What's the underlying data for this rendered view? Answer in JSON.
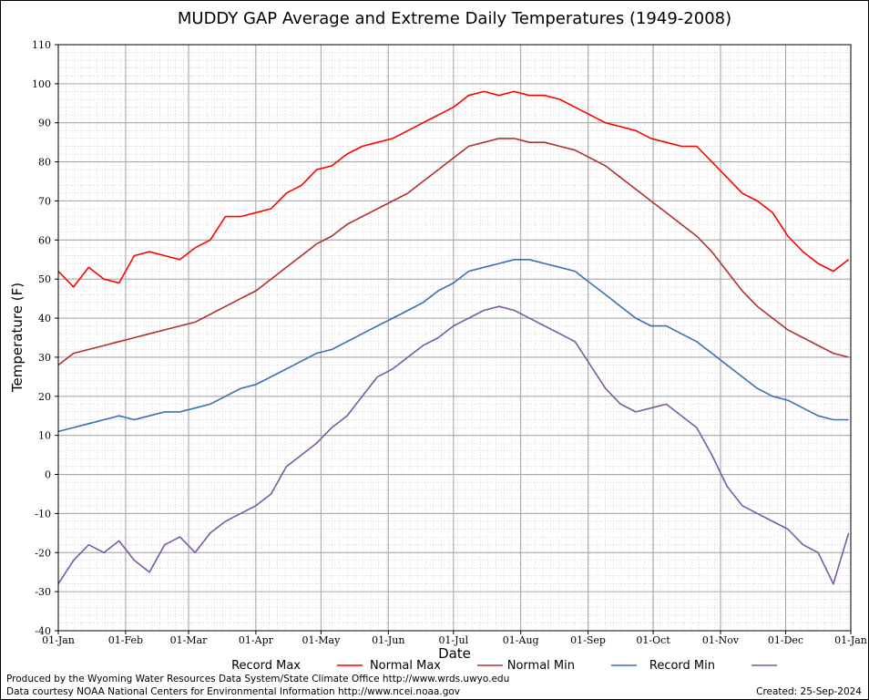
{
  "chart_data": {
    "type": "line",
    "title": "MUDDY GAP Average and Extreme Daily Temperatures (1949-2008)",
    "xlabel": "Date",
    "ylabel": "Temperature (F)",
    "ylim": [
      -40,
      110
    ],
    "yticks": [
      -40,
      -30,
      -20,
      -10,
      0,
      10,
      20,
      30,
      40,
      50,
      60,
      70,
      80,
      90,
      100,
      110
    ],
    "xlim_day_of_year": [
      1,
      366
    ],
    "xticks": [
      {
        "label": "01-Jan",
        "day": 1
      },
      {
        "label": "01-Feb",
        "day": 32
      },
      {
        "label": "01-Mar",
        "day": 61
      },
      {
        "label": "01-Apr",
        "day": 92
      },
      {
        "label": "01-May",
        "day": 122
      },
      {
        "label": "01-Jun",
        "day": 153
      },
      {
        "label": "01-Jul",
        "day": 183
      },
      {
        "label": "01-Aug",
        "day": 214
      },
      {
        "label": "01-Sep",
        "day": 245
      },
      {
        "label": "01-Oct",
        "day": 275
      },
      {
        "label": "01-Nov",
        "day": 306
      },
      {
        "label": "01-Dec",
        "day": 336
      },
      {
        "label": "01-Jan",
        "day": 366
      }
    ],
    "grid": true,
    "legend_position": "bottom",
    "x_day_of_year": [
      1,
      8,
      15,
      22,
      29,
      36,
      43,
      50,
      57,
      64,
      71,
      78,
      85,
      92,
      99,
      106,
      113,
      120,
      127,
      134,
      141,
      148,
      155,
      162,
      169,
      176,
      183,
      190,
      197,
      204,
      211,
      218,
      225,
      232,
      239,
      246,
      253,
      260,
      267,
      274,
      281,
      288,
      295,
      302,
      309,
      316,
      323,
      330,
      337,
      344,
      351,
      358,
      365
    ],
    "series": [
      {
        "name": "Record Max",
        "color": "#ff0000",
        "values": [
          52,
          48,
          53,
          50,
          49,
          56,
          57,
          56,
          55,
          58,
          60,
          66,
          66,
          67,
          68,
          72,
          74,
          78,
          79,
          82,
          84,
          85,
          86,
          88,
          90,
          92,
          94,
          97,
          98,
          97,
          98,
          97,
          97,
          96,
          94,
          92,
          90,
          89,
          88,
          86,
          85,
          84,
          84,
          80,
          76,
          72,
          70,
          67,
          61,
          57,
          54,
          52,
          55
        ]
      },
      {
        "name": "Normal Max",
        "color": "#b03030",
        "values": [
          28,
          31,
          32,
          33,
          34,
          35,
          36,
          37,
          38,
          39,
          41,
          43,
          45,
          47,
          50,
          53,
          56,
          59,
          61,
          64,
          66,
          68,
          70,
          72,
          75,
          78,
          81,
          84,
          85,
          86,
          86,
          85,
          85,
          84,
          83,
          81,
          79,
          76,
          73,
          70,
          67,
          64,
          61,
          57,
          52,
          47,
          43,
          40,
          37,
          35,
          33,
          31,
          30
        ]
      },
      {
        "name": "Normal Min",
        "color": "#3a6fb0",
        "values": [
          11,
          12,
          13,
          14,
          15,
          14,
          15,
          16,
          16,
          17,
          18,
          20,
          22,
          23,
          25,
          27,
          29,
          31,
          32,
          34,
          36,
          38,
          40,
          42,
          44,
          47,
          49,
          52,
          53,
          54,
          55,
          55,
          54,
          53,
          52,
          49,
          46,
          43,
          40,
          38,
          38,
          36,
          34,
          31,
          28,
          25,
          22,
          20,
          19,
          17,
          15,
          14,
          14
        ]
      },
      {
        "name": "Record Min",
        "color": "#7a5aa0",
        "values": [
          -28,
          -22,
          -18,
          -20,
          -17,
          -22,
          -25,
          -18,
          -16,
          -20,
          -15,
          -12,
          -10,
          -8,
          -5,
          2,
          5,
          8,
          12,
          15,
          20,
          25,
          27,
          30,
          33,
          35,
          38,
          40,
          42,
          43,
          42,
          40,
          38,
          36,
          34,
          28,
          22,
          18,
          16,
          17,
          18,
          15,
          12,
          5,
          -3,
          -8,
          -10,
          -12,
          -14,
          -18,
          -20,
          -28,
          -15
        ]
      }
    ]
  },
  "footer": {
    "produced_by": "Produced by the Wyoming Water Resources Data System/State Climate Office http://www.wrds.uwyo.edu",
    "data_courtesy": "Data courtesy NOAA National Centers for Environmental Information http://www.ncei.noaa.gov",
    "created": "Created:  25-Sep-2024"
  }
}
